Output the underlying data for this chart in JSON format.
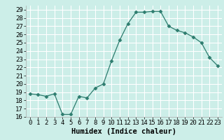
{
  "title": "",
  "xlabel": "Humidex (Indice chaleur)",
  "ylabel": "",
  "hours": [
    0,
    1,
    2,
    3,
    4,
    5,
    6,
    7,
    8,
    9,
    10,
    11,
    12,
    13,
    14,
    15,
    16,
    17,
    18,
    19,
    20,
    21,
    22,
    23
  ],
  "values": [
    18.8,
    18.7,
    18.5,
    18.8,
    16.3,
    16.3,
    18.5,
    18.3,
    19.5,
    20.0,
    22.8,
    25.3,
    27.3,
    28.7,
    28.7,
    28.8,
    28.8,
    27.0,
    26.5,
    26.2,
    25.7,
    25.0,
    23.2,
    22.2
  ],
  "line_color": "#2d7c6e",
  "marker": "D",
  "marker_size": 2.5,
  "bg_color": "#cceee8",
  "grid_color": "#ffffff",
  "ylim": [
    16,
    29.5
  ],
  "yticks": [
    16,
    17,
    18,
    19,
    20,
    21,
    22,
    23,
    24,
    25,
    26,
    27,
    28,
    29
  ],
  "tick_fontsize": 6.5,
  "label_fontsize": 7.5,
  "label_fontweight": "bold"
}
